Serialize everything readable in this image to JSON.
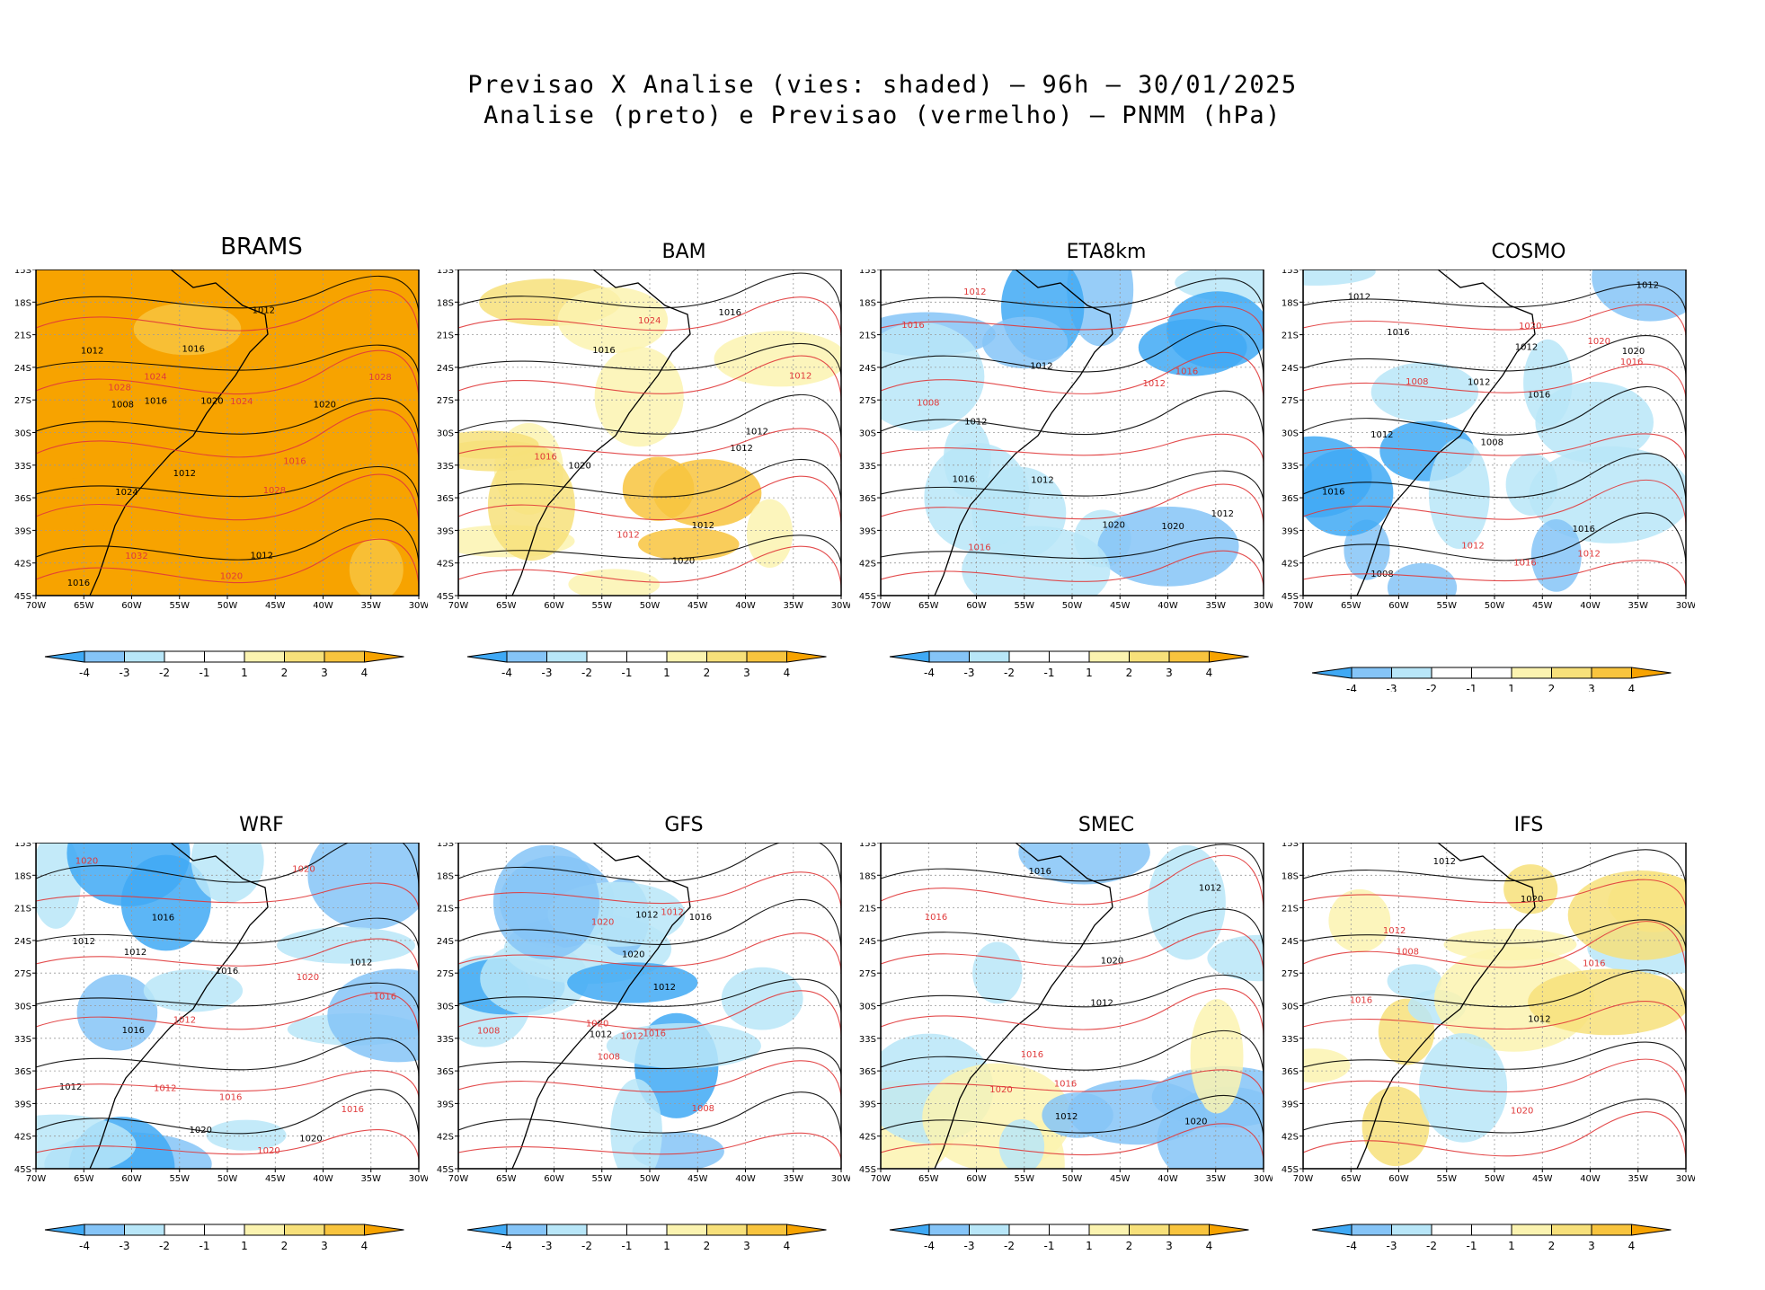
{
  "header": {
    "line1": "Previsao X Analise (vies: shaded) – 96h – 30/01/2025",
    "line2": "Analise (preto) e Previsao (vermelho) – PNMM (hPa)"
  },
  "colors": {
    "neg4": "#3fa9f5",
    "neg3": "#85c4f7",
    "neg2": "#b8e6f8",
    "neg1": "#ffffff",
    "pos1": "#fbf3b0",
    "pos2": "#f7e07a",
    "pos3": "#f8c43e",
    "pos4": "#f7a300",
    "analysis_line": "#000000",
    "forecast_line": "#e0393a"
  },
  "axes": {
    "lat_labels": [
      "15S",
      "18S",
      "21S",
      "24S",
      "27S",
      "30S",
      "33S",
      "36S",
      "39S",
      "42S",
      "45S"
    ],
    "lon_labels": [
      "70W",
      "65W",
      "60W",
      "55W",
      "50W",
      "45W",
      "40W",
      "35W",
      "30W"
    ]
  },
  "colorbar": {
    "labels": [
      "-4",
      "-3",
      "-2",
      "-1",
      "1",
      "2",
      "3",
      "4"
    ]
  },
  "chart_data": {
    "type": "heatmap",
    "title": "Previsao X Analise (vies: shaded) – 96h – 30/01/2025",
    "subtitle": "Analise (preto) e Previsao (vermelho) – PNMM (hPa)",
    "variable": "PNMM (hPa)",
    "lat_range": [
      -45,
      -15
    ],
    "lon_range": [
      -70,
      -30
    ],
    "colorbar_levels": [
      -4,
      -3,
      -2,
      -1,
      1,
      2,
      3,
      4
    ],
    "panels": [
      {
        "model": "BRAMS",
        "bias_class": "pos4",
        "dominant_bias": 4,
        "analysis_labels": [
          "1012",
          "1008",
          "1016",
          "1012",
          "1012",
          "1016",
          "1020",
          "1020",
          "1016",
          "1024",
          "1012"
        ],
        "forecast_labels": [
          "1016",
          "1020",
          "1024",
          "1028",
          "1028",
          "1032",
          "1028",
          "1024"
        ]
      },
      {
        "model": "BAM",
        "bias_class": "pos2",
        "dominant_bias": 2,
        "analysis_labels": [
          "1016",
          "1012",
          "1012",
          "1012",
          "1016",
          "1020",
          "1020"
        ],
        "forecast_labels": [
          "1012",
          "1024",
          "1012",
          "1016"
        ]
      },
      {
        "model": "ETA8km",
        "bias_class": "neg2",
        "dominant_bias": -2,
        "analysis_labels": [
          "1012",
          "1012",
          "1012",
          "1012",
          "1016",
          "1020",
          "1020"
        ],
        "forecast_labels": [
          "1008",
          "1016",
          "1012",
          "1012",
          "1016",
          "1016"
        ]
      },
      {
        "model": "COSMO",
        "bias_class": "neg2",
        "dominant_bias": -2,
        "analysis_labels": [
          "1012",
          "1016",
          "1012",
          "1012",
          "1012",
          "1016",
          "1012",
          "1016",
          "1020",
          "1016",
          "1008",
          "1008"
        ],
        "forecast_labels": [
          "1008",
          "1012",
          "1016",
          "1012",
          "1016",
          "1020",
          "1020"
        ]
      },
      {
        "model": "WRF",
        "bias_class": "neg2",
        "dominant_bias": -2,
        "analysis_labels": [
          "1016",
          "1012",
          "1012",
          "1012",
          "1012",
          "1016",
          "1016",
          "1020",
          "1020"
        ],
        "forecast_labels": [
          "1020",
          "1016",
          "1016",
          "1012",
          "1012",
          "1020",
          "1016",
          "1020",
          "1020"
        ]
      },
      {
        "model": "GFS",
        "bias_class": "neg2",
        "dominant_bias": -2,
        "analysis_labels": [
          "1012",
          "1012",
          "1012",
          "1016",
          "1020"
        ],
        "forecast_labels": [
          "1008",
          "1008",
          "1008",
          "1012",
          "1016",
          "1012",
          "1020",
          "1020"
        ]
      },
      {
        "model": "SMEC",
        "bias_class": "neg1",
        "dominant_bias": -1,
        "analysis_labels": [
          "1012",
          "1012",
          "1012",
          "1016",
          "1020",
          "1020"
        ],
        "forecast_labels": [
          "1016",
          "1016",
          "1016",
          "1020"
        ]
      },
      {
        "model": "IFS",
        "bias_class": "pos1",
        "dominant_bias": 1,
        "analysis_labels": [
          "1012",
          "1012",
          "1020"
        ],
        "forecast_labels": [
          "1008",
          "1016",
          "1012",
          "1016",
          "1020"
        ]
      }
    ]
  }
}
